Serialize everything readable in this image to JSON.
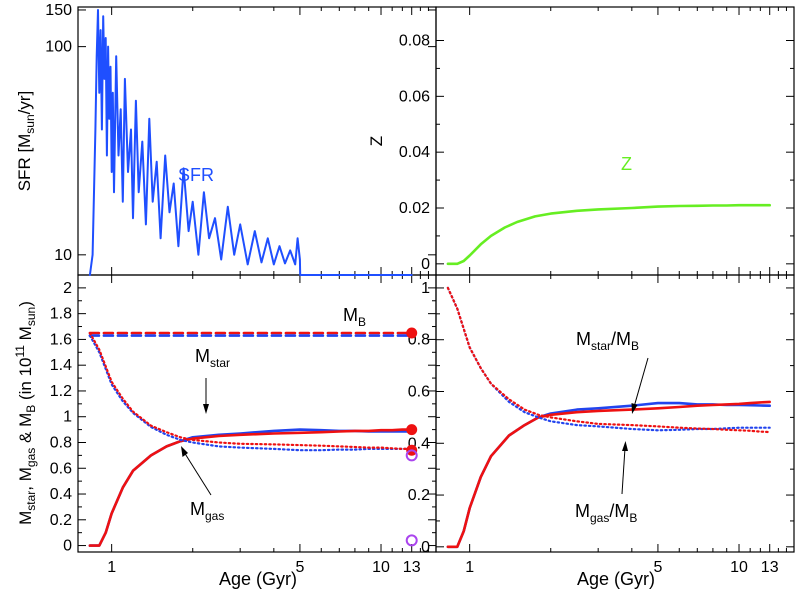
{
  "colors": {
    "sfr_blue": "#1f4fff",
    "stellar_blue": "#2244ee",
    "model_red": "#ee1111",
    "z_green": "#66ee22",
    "obs_purple": "#aa44ee",
    "dots_purple": "#aa33cc",
    "axis": "#000000"
  },
  "chart_data": [
    {
      "type": "line",
      "panel": "top-left",
      "title": "",
      "xlabel": "",
      "ylabel_parts": [
        "SFR [M",
        "sun",
        "/yr]"
      ],
      "y_scale": "log",
      "ylim": [
        8,
        155
      ],
      "yticks": [
        10,
        100,
        150
      ],
      "ytick_labels": [
        "10",
        "100",
        "150"
      ],
      "xlim": [
        0.75,
        16
      ],
      "xticks": [
        1,
        5,
        10,
        13
      ],
      "annotation": "SFR",
      "series": [
        {
          "name": "SFR",
          "color": "#1f4fff",
          "x": [
            0.83,
            0.85,
            0.87,
            0.88,
            0.89,
            0.9,
            0.91,
            0.92,
            0.93,
            0.94,
            0.95,
            0.96,
            0.97,
            0.98,
            0.99,
            1.0,
            1.01,
            1.02,
            1.04,
            1.06,
            1.08,
            1.1,
            1.12,
            1.15,
            1.18,
            1.2,
            1.23,
            1.26,
            1.3,
            1.34,
            1.38,
            1.42,
            1.47,
            1.52,
            1.58,
            1.64,
            1.7,
            1.77,
            1.85,
            1.93,
            2.0,
            2.1,
            2.2,
            2.3,
            2.42,
            2.55,
            2.7,
            2.85,
            3.0,
            3.2,
            3.4,
            3.6,
            3.8,
            4.0,
            4.2,
            4.4,
            4.6,
            4.8,
            4.9,
            5.0,
            5.01,
            8.0,
            13.0
          ],
          "values": [
            8,
            10,
            40,
            90,
            150,
            60,
            120,
            40,
            140,
            70,
            110,
            30,
            100,
            45,
            80,
            25,
            60,
            20,
            90,
            30,
            50,
            18,
            70,
            25,
            40,
            15,
            55,
            20,
            35,
            14,
            45,
            18,
            28,
            12,
            30,
            16,
            22,
            11,
            26,
            13,
            18,
            10,
            20,
            12,
            15,
            9.5,
            17,
            10,
            14,
            9,
            13,
            9.2,
            12,
            9,
            11,
            9.1,
            10.5,
            9.0,
            12,
            9.5,
            8,
            8,
            8
          ]
        }
      ]
    },
    {
      "type": "line",
      "panel": "top-right",
      "title": "",
      "xlabel": "",
      "ylabel": "Z",
      "ylim": [
        -0.004,
        0.092
      ],
      "yticks": [
        0,
        0.02,
        0.04,
        0.06,
        0.08
      ],
      "ytick_labels": [
        "0",
        "0.02",
        "0.04",
        "0.06",
        "0.08"
      ],
      "xlim": [
        0.75,
        16
      ],
      "xticks": [
        1,
        5,
        10,
        13
      ],
      "annotation": "Z",
      "series": [
        {
          "name": "Z",
          "color": "#66ee22",
          "x": [
            0.83,
            0.9,
            0.95,
            1.0,
            1.1,
            1.2,
            1.35,
            1.5,
            1.75,
            2.0,
            2.5,
            3.0,
            4.0,
            5.0,
            6.0,
            7.0,
            8.0,
            9.0,
            10.0,
            11.0,
            12.0,
            13.0
          ],
          "values": [
            0,
            0,
            0.001,
            0.003,
            0.007,
            0.01,
            0.013,
            0.015,
            0.017,
            0.018,
            0.019,
            0.0195,
            0.02,
            0.0205,
            0.0207,
            0.0208,
            0.0209,
            0.0209,
            0.021,
            0.021,
            0.021,
            0.021
          ]
        }
      ]
    },
    {
      "type": "line",
      "panel": "bottom-left",
      "title": "",
      "xlabel": "Age (Gyr)",
      "ylabel": "Mstar, Mgas & MB (in 10^11 Msun)",
      "ylim": [
        -0.05,
        2.1
      ],
      "yticks": [
        0,
        0.2,
        0.4,
        0.6,
        0.8,
        1,
        1.2,
        1.4,
        1.6,
        1.8,
        2
      ],
      "ytick_labels": [
        "0",
        "0.2",
        "0.4",
        "0.6",
        "0.8",
        "1",
        "1.2",
        "1.4",
        "1.6",
        "1.8",
        "2"
      ],
      "xlim": [
        0.75,
        16
      ],
      "xticks": [
        1,
        5,
        10,
        13
      ],
      "xtick_labels": [
        "1",
        "5",
        "10",
        "13"
      ],
      "annotations": [
        "M_B",
        "M_star",
        "M_gas"
      ],
      "series": [
        {
          "name": "M_B model",
          "color": "#ee1111",
          "style": "dashed",
          "x": [
            0.83,
            13.0
          ],
          "values": [
            1.65,
            1.65
          ]
        },
        {
          "name": "M_B stellar",
          "color": "#2244ee",
          "style": "dashed",
          "x": [
            0.83,
            13.0
          ],
          "values": [
            1.63,
            1.63
          ]
        },
        {
          "name": "M_star stellar",
          "color": "#2244ee",
          "style": "solid",
          "x": [
            0.83,
            0.9,
            0.95,
            1.0,
            1.1,
            1.2,
            1.4,
            1.6,
            1.8,
            2.0,
            2.5,
            3.0,
            4.0,
            5.0,
            6.0,
            7.0,
            8.0,
            9.0,
            10.0,
            11.0,
            12.0,
            13.0
          ],
          "values": [
            0,
            0,
            0.1,
            0.25,
            0.45,
            0.58,
            0.7,
            0.77,
            0.81,
            0.84,
            0.86,
            0.87,
            0.89,
            0.9,
            0.895,
            0.89,
            0.89,
            0.885,
            0.885,
            0.885,
            0.885,
            0.885
          ]
        },
        {
          "name": "M_star model",
          "color": "#ee1111",
          "style": "solid",
          "x": [
            0.83,
            0.9,
            0.95,
            1.0,
            1.1,
            1.2,
            1.4,
            1.6,
            1.8,
            2.0,
            2.5,
            3.0,
            4.0,
            5.0,
            6.0,
            7.0,
            8.0,
            9.0,
            10.0,
            11.0,
            12.0,
            13.0
          ],
          "values": [
            0,
            0,
            0.1,
            0.25,
            0.45,
            0.58,
            0.7,
            0.77,
            0.81,
            0.83,
            0.85,
            0.86,
            0.87,
            0.875,
            0.88,
            0.885,
            0.89,
            0.89,
            0.895,
            0.895,
            0.9,
            0.9
          ]
        },
        {
          "name": "M_gas stellar",
          "color": "#2244ee",
          "style": "dotted",
          "x": [
            0.83,
            0.9,
            1.0,
            1.1,
            1.2,
            1.4,
            1.6,
            1.8,
            2.0,
            2.5,
            3.0,
            4.0,
            5.0,
            6.0,
            7.0,
            8.0,
            9.0,
            10.0,
            11.0,
            12.0,
            13.0
          ],
          "values": [
            1.63,
            1.5,
            1.25,
            1.12,
            1.03,
            0.92,
            0.86,
            0.82,
            0.8,
            0.77,
            0.76,
            0.75,
            0.74,
            0.74,
            0.745,
            0.745,
            0.75,
            0.75,
            0.75,
            0.75,
            0.75
          ]
        },
        {
          "name": "M_gas model",
          "color": "#ee1111",
          "style": "dotted",
          "x": [
            0.83,
            0.9,
            1.0,
            1.1,
            1.2,
            1.4,
            1.6,
            1.8,
            2.0,
            2.5,
            3.0,
            4.0,
            5.0,
            6.0,
            7.0,
            8.0,
            9.0,
            10.0,
            11.0,
            12.0,
            13.0
          ],
          "values": [
            1.65,
            1.52,
            1.27,
            1.14,
            1.04,
            0.93,
            0.88,
            0.84,
            0.82,
            0.8,
            0.79,
            0.785,
            0.78,
            0.775,
            0.77,
            0.765,
            0.76,
            0.76,
            0.755,
            0.75,
            0.75
          ]
        }
      ],
      "points": [
        {
          "label": "M_B",
          "x": 13.0,
          "y": 1.65,
          "color": "#ee1111",
          "style": "filled"
        },
        {
          "label": "M_star",
          "x": 13.0,
          "y": 0.9,
          "color": "#ee1111",
          "style": "filled"
        },
        {
          "label": "M_gas",
          "x": 13.0,
          "y": 0.74,
          "color": "#ee1111",
          "style": "filled"
        },
        {
          "label": "M_gas obs",
          "x": 13.0,
          "y": 0.7,
          "color": "#aa44ee",
          "style": "open"
        },
        {
          "label": "obs low",
          "x": 13.0,
          "y": 0.04,
          "color": "#aa44ee",
          "style": "open"
        }
      ]
    },
    {
      "type": "line",
      "panel": "bottom-right",
      "title": "",
      "xlabel": "Age (Gyr)",
      "ylabel": "",
      "ylim": [
        -0.02,
        1.05
      ],
      "yticks": [
        0,
        0.2,
        0.4,
        0.6,
        0.8,
        1
      ],
      "ytick_labels": [
        "0",
        "0.2",
        "0.4",
        "0.6",
        "0.8",
        "1"
      ],
      "xlim": [
        0.75,
        16
      ],
      "xticks": [
        1,
        5,
        10,
        13
      ],
      "xtick_labels": [
        "1",
        "5",
        "10",
        "13"
      ],
      "annotations": [
        "M_star/M_B",
        "M_gas/M_B"
      ],
      "series": [
        {
          "name": "M_star/M_B stellar",
          "color": "#2244ee",
          "style": "solid",
          "x": [
            0.83,
            0.9,
            0.95,
            1.0,
            1.1,
            1.2,
            1.4,
            1.6,
            1.8,
            2.0,
            2.5,
            3.0,
            4.0,
            5.0,
            6.0,
            7.0,
            8.0,
            9.0,
            10.0,
            11.0,
            12.0,
            13.0
          ],
          "values": [
            0,
            0,
            0.06,
            0.15,
            0.27,
            0.35,
            0.43,
            0.47,
            0.5,
            0.515,
            0.53,
            0.535,
            0.545,
            0.555,
            0.555,
            0.55,
            0.55,
            0.548,
            0.548,
            0.547,
            0.546,
            0.545
          ]
        },
        {
          "name": "M_star/M_B model",
          "color": "#ee1111",
          "style": "solid",
          "x": [
            0.83,
            0.9,
            0.95,
            1.0,
            1.1,
            1.2,
            1.4,
            1.6,
            1.8,
            2.0,
            2.5,
            3.0,
            4.0,
            5.0,
            6.0,
            7.0,
            8.0,
            9.0,
            10.0,
            11.0,
            12.0,
            13.0
          ],
          "values": [
            0,
            0,
            0.06,
            0.15,
            0.27,
            0.35,
            0.43,
            0.47,
            0.5,
            0.51,
            0.52,
            0.525,
            0.53,
            0.535,
            0.54,
            0.545,
            0.548,
            0.55,
            0.552,
            0.555,
            0.558,
            0.56
          ]
        },
        {
          "name": "M_gas/M_B stellar",
          "color": "#2244ee",
          "style": "dotted",
          "x": [
            0.83,
            0.9,
            1.0,
            1.1,
            1.2,
            1.4,
            1.6,
            1.8,
            2.0,
            2.5,
            3.0,
            4.0,
            5.0,
            6.0,
            7.0,
            8.0,
            9.0,
            10.0,
            11.0,
            12.0,
            13.0
          ],
          "values": [
            1.0,
            0.92,
            0.77,
            0.69,
            0.63,
            0.56,
            0.52,
            0.5,
            0.485,
            0.47,
            0.465,
            0.455,
            0.45,
            0.452,
            0.455,
            0.455,
            0.458,
            0.46,
            0.46,
            0.46,
            0.46
          ]
        },
        {
          "name": "M_gas/M_B model",
          "color": "#ee1111",
          "style": "dotted",
          "x": [
            0.83,
            0.9,
            1.0,
            1.1,
            1.2,
            1.4,
            1.6,
            1.8,
            2.0,
            2.5,
            3.0,
            4.0,
            5.0,
            6.0,
            7.0,
            8.0,
            9.0,
            10.0,
            11.0,
            12.0,
            13.0
          ],
          "values": [
            1.0,
            0.92,
            0.77,
            0.69,
            0.63,
            0.57,
            0.53,
            0.51,
            0.5,
            0.485,
            0.475,
            0.47,
            0.465,
            0.46,
            0.457,
            0.455,
            0.452,
            0.45,
            0.448,
            0.445,
            0.443
          ]
        }
      ]
    }
  ],
  "labels": {
    "sfr_ylabel_main": "SFR [M",
    "sfr_ylabel_sub": "sun",
    "sfr_ylabel_tail": "/yr]",
    "sfr_annotation": "SFR",
    "z_ylabel": "Z",
    "z_annotation": "Z",
    "mass_ylabel": {
      "m1": "M",
      "s1": "star",
      "c1": ", M",
      "s2": "gas",
      "c2": " & M",
      "s3": "B",
      "t1": " (in 10",
      "p1": "11",
      "t2": " M",
      "s4": "sun",
      "t3": ")"
    },
    "mb_label": {
      "m": "M",
      "s": "B"
    },
    "mstar_label": {
      "m": "M",
      "s": "star"
    },
    "mgas_label": {
      "m": "M",
      "s": "gas"
    },
    "ratio_star_label": {
      "m": "M",
      "s": "star",
      "slash": "/M",
      "s2": "B"
    },
    "ratio_gas_label": {
      "m": "M",
      "s": "gas",
      "slash": "/M",
      "s2": "B"
    },
    "xlabel_left": "Age (Gyr)",
    "xlabel_right": "Age (Gyr)"
  }
}
